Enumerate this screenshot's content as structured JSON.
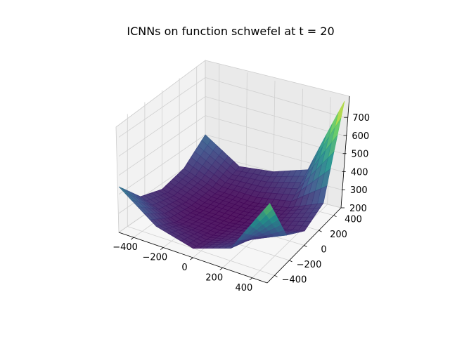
{
  "chart_data": {
    "type": "surface3d",
    "title": "ICNNs on function schwefel at t = 20",
    "colormap": "viridis",
    "x_ticks": [
      -400,
      -200,
      0,
      200,
      400
    ],
    "y_ticks": [
      -400,
      -200,
      0,
      200,
      400
    ],
    "z_ticks": [
      200,
      300,
      400,
      500,
      600,
      700
    ],
    "xlim": [
      -500,
      500
    ],
    "ylim": [
      -500,
      500
    ],
    "zlim": [
      200,
      790
    ],
    "grid": true,
    "surface": {
      "x": [
        -500,
        -250,
        0,
        250,
        500
      ],
      "y": [
        -500,
        -250,
        0,
        250,
        500
      ],
      "z": [
        [
          440,
          300,
          250,
          320,
          640
        ],
        [
          310,
          240,
          230,
          270,
          360
        ],
        [
          270,
          225,
          220,
          240,
          280
        ],
        [
          300,
          235,
          225,
          250,
          330
        ],
        [
          400,
          280,
          300,
          360,
          790
        ]
      ]
    }
  }
}
